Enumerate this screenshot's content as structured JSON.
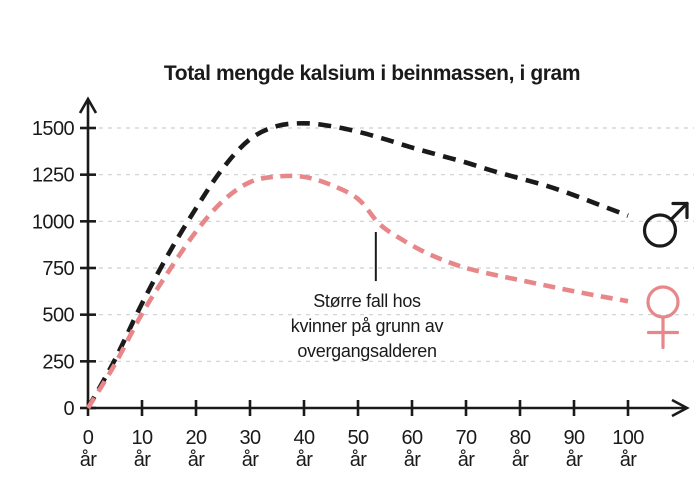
{
  "title": "Total mengde kalsium i beinmassen, i gram",
  "annotation": {
    "lines": [
      "Større fall hos",
      "kvinner på grunn av",
      "overgangsalderen"
    ]
  },
  "colors": {
    "male_curve": "#1a1a1a",
    "female_curve": "#e8878a",
    "gridline": "#ccd1d4",
    "axis": "#1a1a1a",
    "text": "#1a1a1a"
  },
  "chart_data": {
    "type": "line",
    "title": "Total mengde kalsium i beinmassen, i gram",
    "xlabel": "",
    "ylabel": "",
    "x_unit": "år",
    "x_ticks": [
      0,
      10,
      20,
      30,
      40,
      50,
      60,
      70,
      80,
      90,
      100
    ],
    "y_ticks": [
      0,
      250,
      500,
      750,
      1000,
      1250,
      1500
    ],
    "xlim": [
      0,
      111
    ],
    "ylim": [
      0,
      1660
    ],
    "grid": "horizontal-dashed",
    "legend": "symbols-at-line-ends",
    "series": [
      {
        "name": "menn",
        "symbol": "male",
        "style": "dashed",
        "color": "#1a1a1a",
        "points": [
          [
            0,
            0
          ],
          [
            5,
            260
          ],
          [
            10,
            560
          ],
          [
            15,
            830
          ],
          [
            20,
            1070
          ],
          [
            25,
            1285
          ],
          [
            30,
            1440
          ],
          [
            35,
            1510
          ],
          [
            40,
            1525
          ],
          [
            45,
            1510
          ],
          [
            50,
            1480
          ],
          [
            55,
            1440
          ],
          [
            60,
            1395
          ],
          [
            65,
            1355
          ],
          [
            70,
            1315
          ],
          [
            75,
            1270
          ],
          [
            80,
            1230
          ],
          [
            85,
            1190
          ],
          [
            90,
            1140
          ],
          [
            95,
            1085
          ],
          [
            100,
            1030
          ]
        ]
      },
      {
        "name": "kvinner",
        "symbol": "female",
        "style": "dashed",
        "color": "#e8878a",
        "points": [
          [
            0,
            0
          ],
          [
            5,
            235
          ],
          [
            10,
            505
          ],
          [
            15,
            735
          ],
          [
            20,
            945
          ],
          [
            25,
            1110
          ],
          [
            30,
            1210
          ],
          [
            35,
            1240
          ],
          [
            40,
            1238
          ],
          [
            45,
            1195
          ],
          [
            50,
            1120
          ],
          [
            54,
            985
          ],
          [
            58,
            905
          ],
          [
            62,
            840
          ],
          [
            66,
            790
          ],
          [
            70,
            750
          ],
          [
            75,
            715
          ],
          [
            80,
            685
          ],
          [
            85,
            655
          ],
          [
            90,
            625
          ],
          [
            95,
            598
          ],
          [
            100,
            572
          ]
        ]
      }
    ],
    "pointer": {
      "x": 53.3,
      "y_from": 680,
      "y_to": 943
    }
  }
}
